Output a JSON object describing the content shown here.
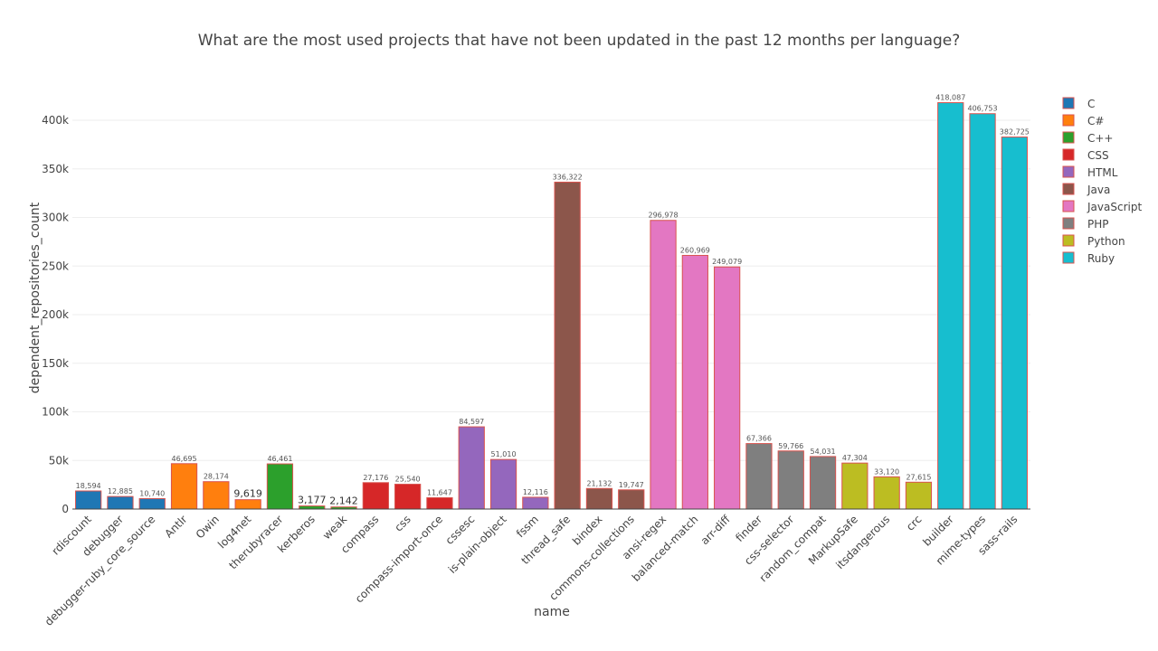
{
  "chart_data": {
    "type": "bar",
    "title": "What are the most used projects that have not been updated in the past 12 months per language?",
    "xlabel": "name",
    "ylabel": "dependent_repositories_count",
    "ylim": [
      0,
      440000
    ],
    "yticks": [
      0,
      50000,
      100000,
      150000,
      200000,
      250000,
      300000,
      350000,
      400000
    ],
    "ytick_labels": [
      "0",
      "50k",
      "100k",
      "150k",
      "200k",
      "250k",
      "300k",
      "350k",
      "400k"
    ],
    "grid": true,
    "legend_position": "right",
    "series": [
      {
        "name": "C",
        "color": "#1f77b4",
        "items": [
          {
            "name": "rdiscount",
            "value": 18594,
            "label": "18,594"
          },
          {
            "name": "debugger",
            "value": 12885,
            "label": "12,885"
          },
          {
            "name": "debugger-ruby_core_source",
            "value": 10740,
            "label": "10,740"
          }
        ]
      },
      {
        "name": "C#",
        "color": "#ff7f0e",
        "items": [
          {
            "name": "Antlr",
            "value": 46695,
            "label": "46,695"
          },
          {
            "name": "Owin",
            "value": 28174,
            "label": "28,174"
          },
          {
            "name": "log4net",
            "value": 9619,
            "label": "9,619"
          }
        ]
      },
      {
        "name": "C++",
        "color": "#2ca02c",
        "items": [
          {
            "name": "therubyracer",
            "value": 46461,
            "label": "46,461"
          },
          {
            "name": "kerberos",
            "value": 3177,
            "label": "3,177"
          },
          {
            "name": "weak",
            "value": 2142,
            "label": "2,142"
          }
        ]
      },
      {
        "name": "CSS",
        "color": "#d62728",
        "items": [
          {
            "name": "compass",
            "value": 27176,
            "label": "27,176"
          },
          {
            "name": "css",
            "value": 25540,
            "label": "25,540"
          },
          {
            "name": "compass-import-once",
            "value": 11647,
            "label": "11,647"
          }
        ]
      },
      {
        "name": "HTML",
        "color": "#9467bd",
        "items": [
          {
            "name": "cssesc",
            "value": 84597,
            "label": "84,597"
          },
          {
            "name": "is-plain-object",
            "value": 51010,
            "label": "51,010"
          },
          {
            "name": "fssm",
            "value": 12116,
            "label": "12,116"
          }
        ]
      },
      {
        "name": "Java",
        "color": "#8c564b",
        "items": [
          {
            "name": "thread_safe",
            "value": 336322,
            "label": "336,322"
          },
          {
            "name": "bindex",
            "value": 21132,
            "label": "21,132"
          },
          {
            "name": "commons-collections",
            "value": 19747,
            "label": "19,747"
          }
        ]
      },
      {
        "name": "JavaScript",
        "color": "#e377c2",
        "items": [
          {
            "name": "ansi-regex",
            "value": 296978,
            "label": "296,978"
          },
          {
            "name": "balanced-match",
            "value": 260969,
            "label": "260,969"
          },
          {
            "name": "arr-diff",
            "value": 249079,
            "label": "249,079"
          }
        ]
      },
      {
        "name": "PHP",
        "color": "#7f7f7f",
        "items": [
          {
            "name": "finder",
            "value": 67366,
            "label": "67,366"
          },
          {
            "name": "css-selector",
            "value": 59766,
            "label": "59,766"
          },
          {
            "name": "random_compat",
            "value": 54031,
            "label": "54,031"
          }
        ]
      },
      {
        "name": "Python",
        "color": "#bcbd22",
        "items": [
          {
            "name": "MarkupSafe",
            "value": 47304,
            "label": "47,304"
          },
          {
            "name": "itsdangerous",
            "value": 33120,
            "label": "33,120"
          },
          {
            "name": "crc",
            "value": 27615,
            "label": "27,615"
          }
        ]
      },
      {
        "name": "Ruby",
        "color": "#17becf",
        "items": [
          {
            "name": "builder",
            "value": 418087,
            "label": "418,087"
          },
          {
            "name": "mime-types",
            "value": 406753,
            "label": "406,753"
          },
          {
            "name": "sass-rails",
            "value": 382725,
            "label": "382,725"
          }
        ]
      }
    ],
    "bar_outline_color": "#d9534f"
  }
}
